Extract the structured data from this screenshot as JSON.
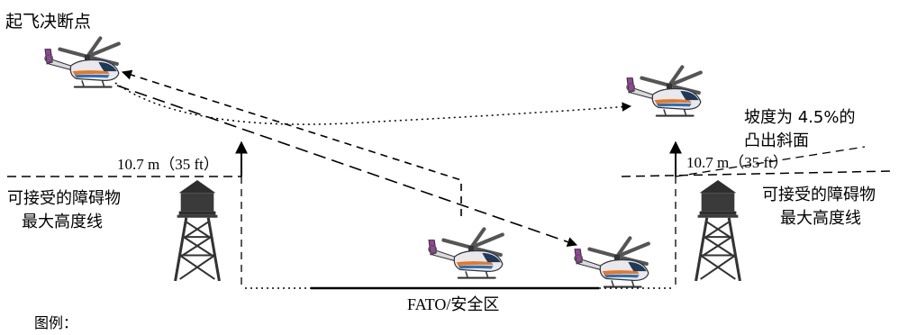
{
  "labels": {
    "decision_point": "起飞决断点",
    "height_left": "10.7 m（35 ft）",
    "height_right": "10.7 m（35 ft）",
    "obstacle_line_left_1": "可接受的障碍物",
    "obstacle_line_left_2": "最大高度线",
    "obstacle_line_right_1": "可接受的障碍物",
    "obstacle_line_right_2": "最大高度线",
    "slope_1": "坡度为 4.5%的",
    "slope_2": "凸出斜面",
    "fato": "FATO/安全区",
    "legend": "图例："
  },
  "icons": {
    "helicopter": "helicopter-icon",
    "tower": "lattice-tower-icon",
    "arrow": "arrow-up-icon"
  },
  "colors": {
    "line": "#000000",
    "heli_body": "#e8e8ef",
    "heli_stripe_orange": "#e87722",
    "heli_stripe_blue": "#2a6fb5",
    "heli_tail_purple": "#9b3fa0",
    "tower": "#3a3a3a"
  }
}
